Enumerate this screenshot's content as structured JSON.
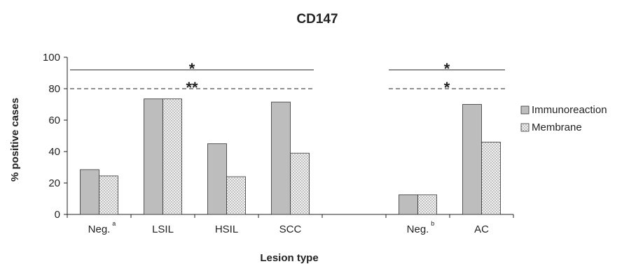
{
  "chart_data": {
    "type": "bar",
    "title": "CD147",
    "xlabel": "Lesion type",
    "ylabel": "% positive cases",
    "ylim": [
      0,
      100
    ],
    "yticks": [
      0,
      20,
      40,
      60,
      80,
      100
    ],
    "categories": [
      {
        "label": "Neg.",
        "sup": "a"
      },
      {
        "label": "LSIL",
        "sup": ""
      },
      {
        "label": "HSIL",
        "sup": ""
      },
      {
        "label": "SCC",
        "sup": ""
      },
      {
        "label": "",
        "sup": ""
      },
      {
        "label": "Neg.",
        "sup": "b"
      },
      {
        "label": "AC",
        "sup": ""
      }
    ],
    "series": [
      {
        "name": "Immunoreaction",
        "color": "#bdbdbd",
        "pattern": "solid",
        "values": [
          28.5,
          73.5,
          45,
          71.5,
          null,
          12.5,
          70
        ]
      },
      {
        "name": "Membrane",
        "color": "#e8e8e8",
        "pattern": "dotted",
        "values": [
          24.5,
          73.5,
          24,
          39,
          null,
          12.5,
          46
        ]
      }
    ],
    "significance": [
      {
        "from_category": 0,
        "to_category": 3,
        "y": 92,
        "style": "solid",
        "label": "*"
      },
      {
        "from_category": 0,
        "to_category": 3,
        "y": 80,
        "style": "dashed",
        "label": "**"
      },
      {
        "from_category": 5,
        "to_category": 6,
        "y": 92,
        "style": "solid",
        "label": "*"
      },
      {
        "from_category": 5,
        "to_category": 6,
        "y": 80,
        "style": "dashed",
        "label": "*"
      }
    ],
    "legend": {
      "position": "right"
    },
    "grid": false
  }
}
